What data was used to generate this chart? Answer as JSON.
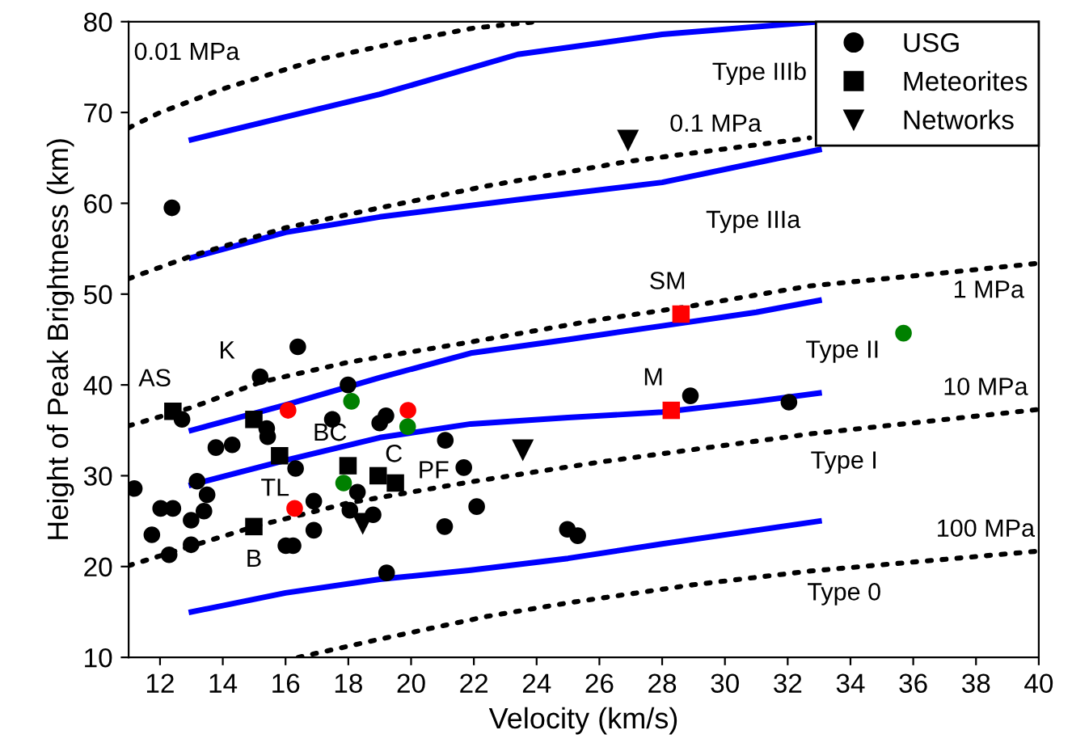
{
  "chart_data": {
    "type": "scatter",
    "xlabel": "Velocity (km/s)",
    "ylabel": "Height of Peak Brightness (km)",
    "xlim": [
      11,
      40
    ],
    "ylim": [
      10,
      80
    ],
    "xticks": [
      12,
      14,
      16,
      18,
      20,
      22,
      24,
      26,
      28,
      30,
      32,
      34,
      36,
      38,
      40
    ],
    "yticks": [
      10,
      20,
      30,
      40,
      50,
      60,
      70,
      80
    ],
    "grid": false,
    "legend": "top right",
    "series": [
      {
        "name": "USG",
        "type": "scatter",
        "marker": "circle",
        "color": "#000000",
        "x": [
          16.39,
          15.19,
          17.99,
          12.7,
          16.08,
          18.1,
          19.9,
          19.89,
          19.2,
          19.0,
          17.49,
          15.4,
          15.43,
          13.78,
          14.3,
          21.09,
          16.32,
          17.85,
          21.68,
          11.18,
          13.18,
          13.5,
          12.02,
          12.41,
          13.4,
          12.99,
          16.29,
          16.9,
          18.29,
          18.05,
          18.79,
          11.74,
          16.9,
          12.29,
          12.99,
          16.01,
          16.24,
          19.22,
          21.07,
          22.09,
          35.69,
          28.9,
          32.04,
          24.98,
          25.31,
          12.38
        ],
        "values": [
          44.2,
          40.9,
          40.0,
          36.2,
          37.2,
          38.2,
          37.2,
          35.4,
          36.6,
          35.8,
          36.2,
          35.2,
          34.3,
          33.1,
          33.4,
          33.9,
          30.8,
          29.2,
          30.9,
          28.6,
          29.4,
          27.9,
          26.4,
          26.4,
          26.1,
          25.1,
          26.4,
          27.2,
          28.2,
          26.2,
          25.7,
          23.5,
          24.0,
          21.3,
          22.4,
          22.3,
          22.3,
          19.3,
          24.4,
          26.6,
          45.7,
          38.8,
          38.1,
          24.1,
          23.4,
          59.5
        ],
        "colors": [
          "#000000",
          "#000000",
          "#000000",
          "#000000",
          "#ff0000",
          "#008000",
          "#ff0000",
          "#008000",
          "#000000",
          "#000000",
          "#000000",
          "#000000",
          "#000000",
          "#000000",
          "#000000",
          "#000000",
          "#000000",
          "#008000",
          "#000000",
          "#000000",
          "#000000",
          "#000000",
          "#000000",
          "#000000",
          "#000000",
          "#000000",
          "#ff0000",
          "#000000",
          "#000000",
          "#000000",
          "#000000",
          "#000000",
          "#000000",
          "#000000",
          "#000000",
          "#000000",
          "#000000",
          "#000000",
          "#000000",
          "#000000",
          "#008000",
          "#000000",
          "#000000",
          "#000000",
          "#000000",
          "#000000"
        ]
      },
      {
        "name": "Meteorites",
        "type": "scatter",
        "marker": "square",
        "color": "#000000",
        "x": [
          12.41,
          14.99,
          15.81,
          17.99,
          18.95,
          19.5,
          14.99,
          28.6,
          28.29
        ],
        "values": [
          37.1,
          36.2,
          32.2,
          31.1,
          30.0,
          29.2,
          24.4,
          47.8,
          37.2
        ],
        "colors": [
          "#000000",
          "#000000",
          "#000000",
          "#000000",
          "#000000",
          "#000000",
          "#000000",
          "#ff0000",
          "#ff0000"
        ]
      },
      {
        "name": "Networks",
        "type": "scatter",
        "marker": "triangle",
        "color": "#000000",
        "x": [
          18.46,
          23.56,
          26.91
        ],
        "values": [
          24.7,
          32.8,
          66.9
        ]
      },
      {
        "type": "line",
        "color": "#0000ff",
        "line_style": "solid",
        "x": [
          13,
          16,
          19,
          23.4,
          28,
          33
        ],
        "values": [
          67,
          69.5,
          72,
          76.4,
          78.6,
          80
        ]
      },
      {
        "type": "line",
        "color": "#0000ff",
        "line_style": "solid",
        "x": [
          13,
          16,
          19,
          23.4,
          28,
          33
        ],
        "values": [
          54,
          56.8,
          58.5,
          60.4,
          62.3,
          65.9
        ]
      },
      {
        "type": "line",
        "color": "#0000ff",
        "line_style": "solid",
        "x": [
          13,
          16,
          19,
          21.9,
          25,
          28,
          31,
          33
        ],
        "values": [
          35,
          37.8,
          40.8,
          43.5,
          45,
          46.5,
          48,
          49.3
        ]
      },
      {
        "type": "line",
        "color": "#0000ff",
        "line_style": "solid",
        "x": [
          13,
          16,
          19,
          21.9,
          25,
          28,
          31,
          33
        ],
        "values": [
          29,
          31.7,
          34.2,
          35.7,
          36.4,
          37,
          38.2,
          39.1
        ]
      },
      {
        "type": "line",
        "color": "#0000ff",
        "line_style": "solid",
        "x": [
          13,
          16,
          19,
          21.9,
          25,
          28,
          33
        ],
        "values": [
          15,
          17.1,
          18.6,
          19.6,
          20.9,
          22.5,
          25
        ]
      },
      {
        "type": "line",
        "color": "#000000",
        "line_style": "dotted",
        "x": [
          11,
          12,
          14,
          17,
          20,
          22,
          24
        ],
        "values": [
          68.3,
          70.0,
          72.6,
          75.8,
          78.0,
          79.3,
          80
        ]
      },
      {
        "type": "line",
        "color": "#000000",
        "line_style": "dotted",
        "x": [
          11,
          13,
          16,
          19,
          22.4,
          26.9,
          32.7
        ],
        "values": [
          51.7,
          54.2,
          57.3,
          59.5,
          61.9,
          64.6,
          67.2
        ]
      },
      {
        "type": "line",
        "color": "#000000",
        "line_style": "dotted",
        "x": [
          11,
          13,
          15.2,
          18,
          21.85,
          26,
          28.6,
          32.7,
          36,
          40
        ],
        "values": [
          35.5,
          37.5,
          40.3,
          42.5,
          44.7,
          47.2,
          48.5,
          50.9,
          52,
          53.4
        ]
      },
      {
        "type": "line",
        "color": "#000000",
        "line_style": "dotted",
        "x": [
          11,
          15,
          18,
          21.85,
          26,
          32.7,
          40
        ],
        "values": [
          20.1,
          24.4,
          27,
          29.3,
          31.5,
          34.6,
          37.3
        ]
      },
      {
        "type": "line",
        "color": "#000000",
        "line_style": "dotted",
        "x": [
          16.4,
          19,
          22.4,
          25,
          29,
          32.7,
          40
        ],
        "values": [
          10,
          12,
          14.5,
          16,
          18,
          19.5,
          21.7
        ]
      }
    ],
    "annotations": [
      "0.01 MPa",
      "Type IIIb",
      "0.1 MPa",
      "Type IIIa",
      "1 MPa",
      "Type II",
      "10 MPa",
      "Type I",
      "100 MPa",
      "Type 0",
      {
        "text": "AS",
        "x": 12.41,
        "y": 37.1
      },
      {
        "text": "K",
        "x": 14.99,
        "y": 36.2
      },
      {
        "text": "TL",
        "x": 15.81,
        "y": 32.2
      },
      {
        "text": "B",
        "x": 14.99,
        "y": 24.4
      },
      {
        "text": "BC",
        "x": 17.99,
        "y": 31.1
      },
      {
        "text": "C",
        "x": 18.95,
        "y": 30.0
      },
      {
        "text": "PF",
        "x": 19.5,
        "y": 29.2
      },
      {
        "text": "SM",
        "x": 28.6,
        "y": 47.8
      },
      {
        "text": "M",
        "x": 28.29,
        "y": 37.2
      }
    ]
  }
}
